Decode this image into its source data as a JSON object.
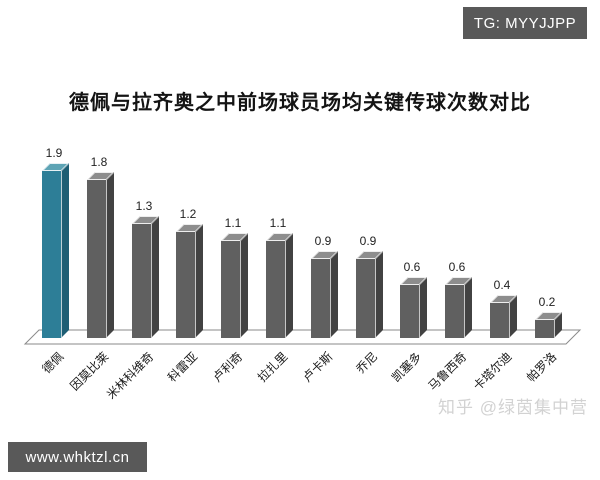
{
  "badges": {
    "telegram": "TG: MYYJJPP",
    "website": "www.whktzl.cn"
  },
  "watermark": "知乎 @绿茵集中营",
  "colors": {
    "badge_background": "#595959",
    "highlight_front": "#2d7e97",
    "highlight_side": "#1e5e74",
    "highlight_top": "#5ea4b5",
    "bar_front": "#606060",
    "bar_side": "#424242",
    "bar_top": "#8d8d8d",
    "floor_stroke": "#8a8a8a",
    "watermark_gray": "#d2d2d2"
  },
  "chart_data": {
    "type": "bar",
    "style": "3d-column",
    "title": "德佩与拉齐奥之中前场球员场均关键传球次数对比",
    "categories": [
      "德佩",
      "因莫比莱",
      "米林科维奇",
      "科雷亚",
      "卢利奇",
      "拉扎里",
      "卢卡斯",
      "乔尼",
      "凯塞多",
      "马鲁西奇",
      "卡塔尔迪",
      "帕罗洛"
    ],
    "values": [
      1.9,
      1.8,
      1.3,
      1.2,
      1.1,
      1.1,
      0.9,
      0.9,
      0.6,
      0.6,
      0.4,
      0.2
    ],
    "highlight_index": 0,
    "highlight_category": "德佩",
    "xlabel": "",
    "ylabel": "",
    "ylim": [
      0,
      2
    ],
    "grid": false,
    "legend": "none",
    "data_labels": true,
    "data_label_format": "0.1"
  }
}
